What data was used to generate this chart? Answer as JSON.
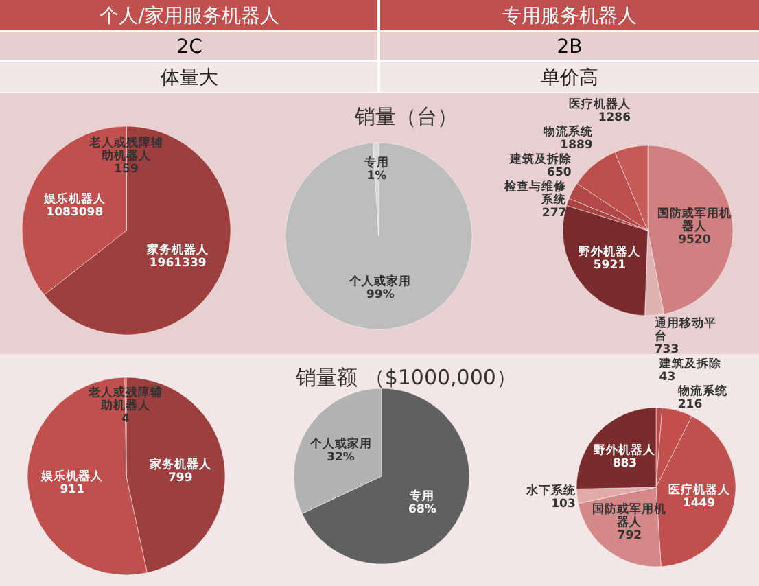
{
  "chart_data": [
    {
      "type": "other",
      "annotations": [
        "个人/家用服务机器人",
        "专用服务机器人",
        "2C",
        "2B",
        "体量大",
        "单价高"
      ]
    },
    {
      "type": "pie",
      "categories": [
        "家务机器人",
        "娱乐机器人",
        "老人或残障辅助机器人"
      ],
      "values": [
        1961339,
        1083098,
        159
      ],
      "colors": [
        "#9e3f3f",
        "#c0504d",
        "#c9605d"
      ],
      "data_labels": true
    },
    {
      "type": "pie",
      "title": "销量（台）",
      "categories": [
        "个人或家用",
        "专用"
      ],
      "values": [
        99,
        1
      ],
      "colors": [
        "#bdbdbd",
        "#d9d9d9"
      ],
      "value_labels": [
        "99%",
        "1%"
      ]
    },
    {
      "type": "pie",
      "categories": [
        "国防或军用机器人",
        "通用移动平台",
        "野外机器人",
        "检查与维修系统",
        "建筑及拆除",
        "物流系统",
        "医疗机器人"
      ],
      "values": [
        9520,
        733,
        5921,
        277,
        650,
        1889,
        1286
      ],
      "colors": [
        "#d08080",
        "#e0b3b3",
        "#7a2c2c",
        "#a84444",
        "#b34848",
        "#bc4e4b",
        "#c55a57"
      ],
      "data_labels": true
    },
    {
      "type": "pie",
      "categories": [
        "家务机器人",
        "娱乐机器人",
        "老人或残障辅助机器人"
      ],
      "values": [
        799,
        911,
        4
      ],
      "colors": [
        "#9e3f3f",
        "#c0504d",
        "#c9605d"
      ],
      "data_labels": true
    },
    {
      "type": "pie",
      "title": "销量额 （$1000,000）",
      "categories": [
        "专用",
        "个人或家用"
      ],
      "values": [
        68,
        32
      ],
      "colors": [
        "#606060",
        "#b3b3b3"
      ],
      "value_labels": [
        "68%",
        "32%"
      ]
    },
    {
      "type": "pie",
      "categories": [
        "建筑及拆除",
        "物流系统",
        "医疗机器人",
        "国防或军用机器人",
        "水下系统",
        "野外机器人"
      ],
      "values": [
        43,
        216,
        1449,
        792,
        103,
        883
      ],
      "colors": [
        "#b84a4a",
        "#c24f4c",
        "#c0504d",
        "#d48888",
        "#e3aaaa",
        "#7a2c2c"
      ],
      "data_labels": true
    }
  ]
}
